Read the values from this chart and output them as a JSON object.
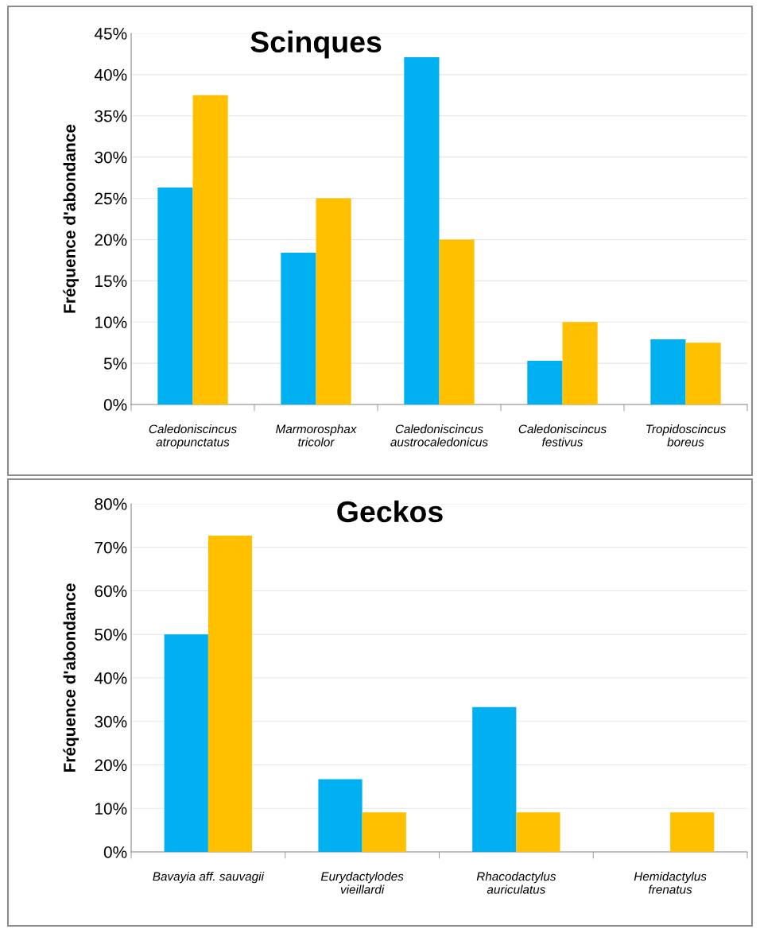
{
  "chart_data": [
    {
      "type": "bar",
      "title": "Scinques",
      "ylabel": "Fréquence d'abondance",
      "categories": [
        "Caledoniscincus\natropunctatus",
        "Marmorosphax\ntricolor",
        "Caledoniscincus\naustrocaledonicus",
        "Caledoniscincus\nfestivus",
        "Tropidoscincus\nboreus"
      ],
      "series": [
        {
          "color": "#00b0f0",
          "values": [
            26.3,
            18.4,
            42.1,
            5.3,
            7.9
          ]
        },
        {
          "color": "#ffc000",
          "values": [
            37.5,
            25,
            20,
            10,
            7.5
          ]
        }
      ],
      "ylim": [
        0,
        45
      ],
      "yticks": [
        {
          "value": 0,
          "label": "0%"
        },
        {
          "value": 5,
          "label": "5%"
        },
        {
          "value": 10,
          "label": "10%"
        },
        {
          "value": 15,
          "label": "15%"
        },
        {
          "value": 20,
          "label": "20%"
        },
        {
          "value": 25,
          "label": "25%"
        },
        {
          "value": 30,
          "label": "30%"
        },
        {
          "value": 35,
          "label": "35%"
        },
        {
          "value": 40,
          "label": "40%"
        },
        {
          "value": 45,
          "label": "45%"
        }
      ],
      "grid": "y",
      "legend": false
    },
    {
      "type": "bar",
      "title": "Geckos",
      "ylabel": "Fréquence d'abondance",
      "categories": [
        "Bavayia aff. sauvagii",
        "Eurydactylodes\nvieillardi",
        "Rhacodactylus\nauriculatus",
        "Hemidactylus\nfrenatus"
      ],
      "series": [
        {
          "color": "#00b0f0",
          "values": [
            50,
            16.7,
            33.3,
            0
          ]
        },
        {
          "color": "#ffc000",
          "values": [
            72.7,
            9.1,
            9.1,
            9.1
          ]
        }
      ],
      "ylim": [
        0,
        80
      ],
      "yticks": [
        {
          "value": 0,
          "label": "0%"
        },
        {
          "value": 10,
          "label": "10%"
        },
        {
          "value": 20,
          "label": "20%"
        },
        {
          "value": 30,
          "label": "30%"
        },
        {
          "value": 40,
          "label": "40%"
        },
        {
          "value": 50,
          "label": "50%"
        },
        {
          "value": 60,
          "label": "60%"
        },
        {
          "value": 70,
          "label": "70%"
        },
        {
          "value": 80,
          "label": "80%"
        }
      ],
      "grid": "y",
      "legend": false
    }
  ]
}
